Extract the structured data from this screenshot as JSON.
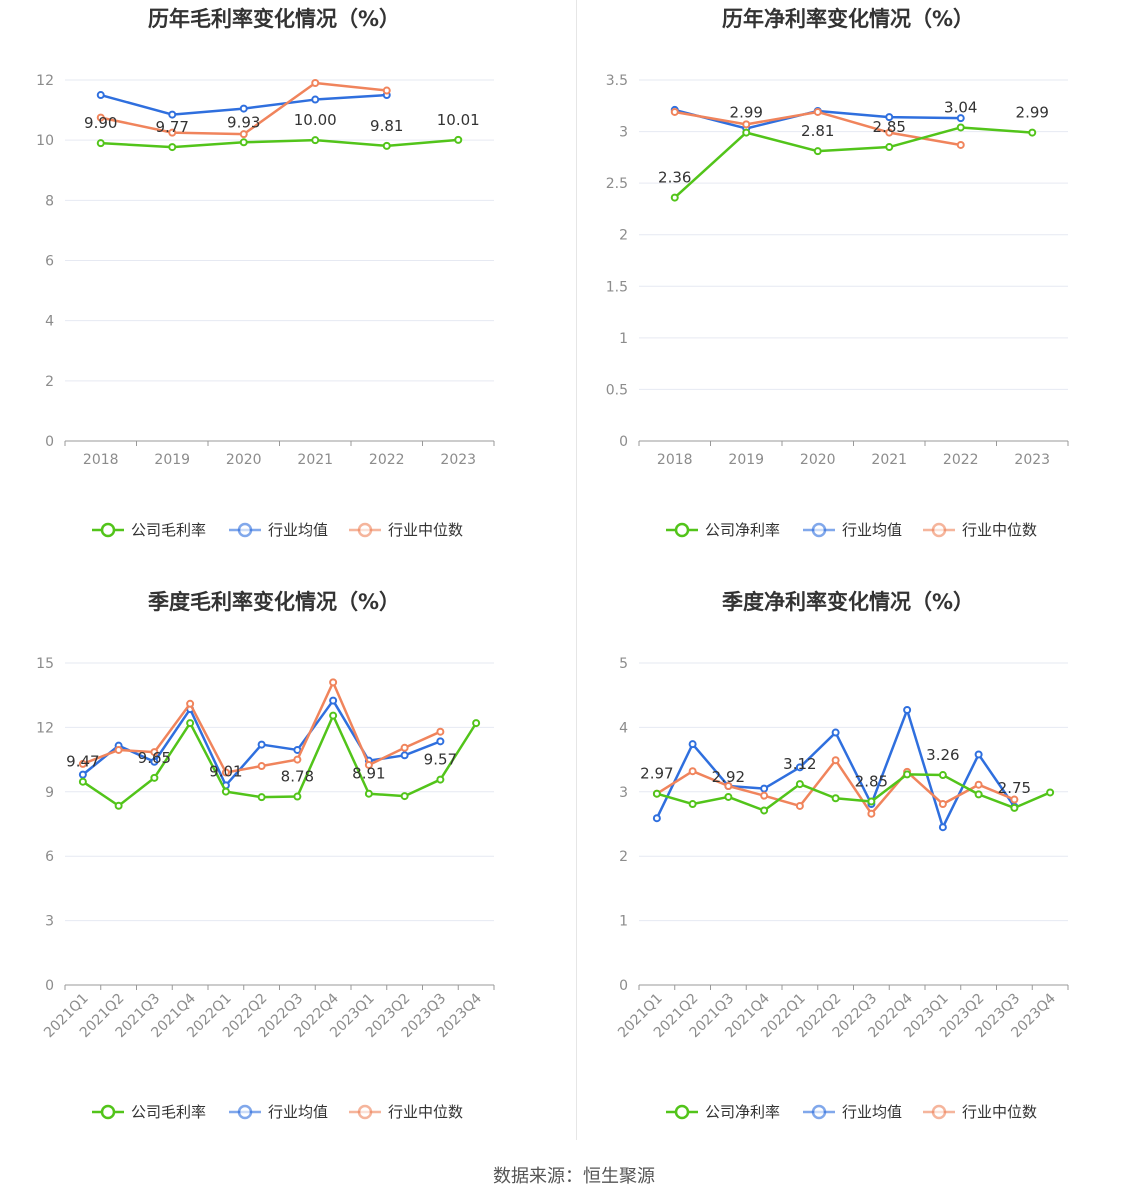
{
  "source_label": "数据来源：恒生聚源",
  "colors": {
    "company": "#52c41a",
    "avg": "#2f6fde",
    "median": "#f0845c"
  },
  "chart_data": [
    {
      "type": "line",
      "title": "历年毛利率变化情况（%）",
      "categories": [
        "2018",
        "2019",
        "2020",
        "2021",
        "2022",
        "2023"
      ],
      "ylim": [
        0,
        12
      ],
      "yticks": [
        0,
        2,
        4,
        6,
        8,
        10,
        12
      ],
      "x_rotated": false,
      "series": [
        {
          "name": "公司毛利率",
          "key": "company",
          "values": [
            9.9,
            9.77,
            9.93,
            10.0,
            9.81,
            10.01
          ],
          "labels": [
            "9.90",
            "9.77",
            "9.93",
            "10.00",
            "9.81",
            "10.01"
          ]
        },
        {
          "name": "行业均值",
          "key": "avg",
          "values": [
            11.5,
            10.85,
            11.05,
            11.35,
            11.5,
            null
          ]
        },
        {
          "name": "行业中位数",
          "key": "median",
          "values": [
            10.75,
            10.25,
            10.2,
            11.9,
            11.65,
            null
          ]
        }
      ]
    },
    {
      "type": "line",
      "title": "历年净利率变化情况（%）",
      "categories": [
        "2018",
        "2019",
        "2020",
        "2021",
        "2022",
        "2023"
      ],
      "ylim": [
        0,
        3.5
      ],
      "yticks": [
        0,
        0.5,
        1,
        1.5,
        2,
        2.5,
        3,
        3.5
      ],
      "x_rotated": false,
      "series": [
        {
          "name": "公司净利率",
          "key": "company",
          "values": [
            2.36,
            2.99,
            2.81,
            2.85,
            3.04,
            2.99
          ],
          "labels": [
            "2.36",
            "2.99",
            "2.81",
            "2.85",
            "3.04",
            "2.99"
          ]
        },
        {
          "name": "行业均值",
          "key": "avg",
          "values": [
            3.21,
            3.03,
            3.2,
            3.14,
            3.13,
            null
          ]
        },
        {
          "name": "行业中位数",
          "key": "median",
          "values": [
            3.19,
            3.07,
            3.19,
            2.99,
            2.87,
            null
          ]
        }
      ]
    },
    {
      "type": "line",
      "title": "季度毛利率变化情况（%）",
      "categories": [
        "2021Q1",
        "2021Q2",
        "2021Q3",
        "2021Q4",
        "2022Q1",
        "2022Q2",
        "2022Q3",
        "2022Q4",
        "2023Q1",
        "2023Q2",
        "2023Q3",
        "2023Q4"
      ],
      "ylim": [
        0,
        15
      ],
      "yticks": [
        0,
        3,
        6,
        9,
        12,
        15
      ],
      "x_rotated": true,
      "series": [
        {
          "name": "公司毛利率",
          "key": "company",
          "values": [
            9.47,
            8.35,
            9.65,
            12.2,
            9.01,
            8.75,
            8.78,
            12.55,
            8.91,
            8.8,
            9.57,
            12.2
          ],
          "labels": [
            "9.47",
            "",
            "9.65",
            "",
            "9.01",
            "",
            "8.78",
            "",
            "8.91",
            "",
            "9.57",
            ""
          ]
        },
        {
          "name": "行业均值",
          "key": "avg",
          "values": [
            9.8,
            11.15,
            10.4,
            12.85,
            9.3,
            11.2,
            10.95,
            13.25,
            10.45,
            10.7,
            11.35,
            null
          ]
        },
        {
          "name": "行业中位数",
          "key": "median",
          "values": [
            10.3,
            10.95,
            10.85,
            13.1,
            9.9,
            10.2,
            10.5,
            14.1,
            10.25,
            11.05,
            11.8,
            null
          ]
        }
      ]
    },
    {
      "type": "line",
      "title": "季度净利率变化情况（%）",
      "categories": [
        "2021Q1",
        "2021Q2",
        "2021Q3",
        "2021Q4",
        "2022Q1",
        "2022Q2",
        "2022Q3",
        "2022Q4",
        "2023Q1",
        "2023Q2",
        "2023Q3",
        "2023Q4"
      ],
      "ylim": [
        0,
        5
      ],
      "yticks": [
        0,
        1,
        2,
        3,
        4,
        5
      ],
      "x_rotated": true,
      "series": [
        {
          "name": "公司净利率",
          "key": "company",
          "values": [
            2.97,
            2.81,
            2.92,
            2.71,
            3.12,
            2.9,
            2.85,
            3.27,
            3.26,
            2.96,
            2.75,
            2.99
          ],
          "labels": [
            "2.97",
            "",
            "2.92",
            "",
            "3.12",
            "",
            "2.85",
            "",
            "3.26",
            "",
            "2.75",
            ""
          ]
        },
        {
          "name": "行业均值",
          "key": "avg",
          "values": [
            2.59,
            3.74,
            3.09,
            3.05,
            3.38,
            3.92,
            2.81,
            4.27,
            2.45,
            3.58,
            2.77,
            null
          ]
        },
        {
          "name": "行业中位数",
          "key": "median",
          "values": [
            2.97,
            3.32,
            3.09,
            2.94,
            2.78,
            3.49,
            2.66,
            3.31,
            2.81,
            3.11,
            2.88,
            null
          ]
        }
      ]
    }
  ]
}
